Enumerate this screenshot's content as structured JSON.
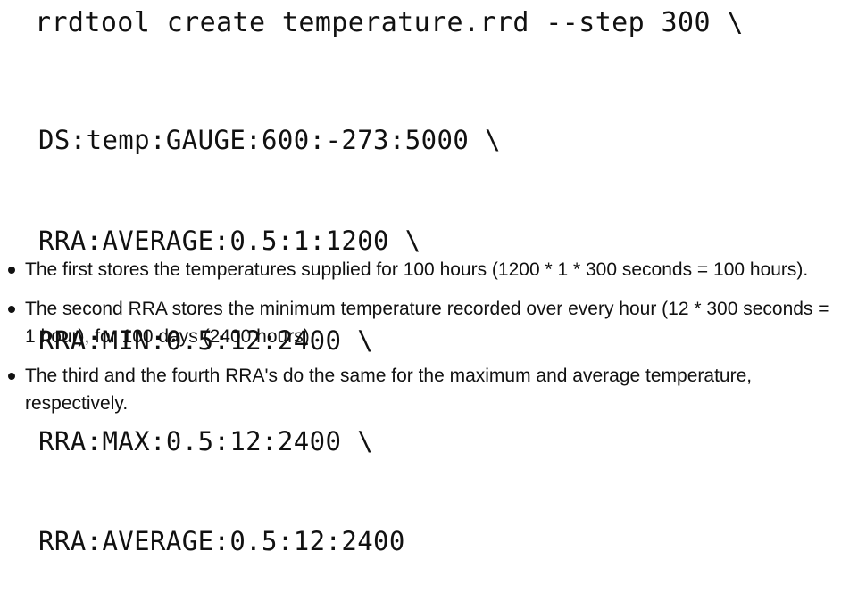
{
  "code": {
    "command": "rrdtool create temperature.rrd --step 300 \\",
    "args": [
      "DS:temp:GAUGE:600:-273:5000 \\",
      "RRA:AVERAGE:0.5:1:1200 \\",
      "RRA:MIN:0.5:12:2400 \\",
      "RRA:MAX:0.5:12:2400 \\",
      "RRA:AVERAGE:0.5:12:2400"
    ]
  },
  "bullets": [
    "The first stores the temperatures supplied for 100 hours (1200 * 1 * 300 seconds = 100 hours).",
    "The second RRA stores the minimum temperature recorded over every hour (12 * 300 seconds = 1 hour), for 100 days (2400 hours).",
    "The third and the fourth RRA's do the same for the maximum and average temperature, respectively."
  ]
}
